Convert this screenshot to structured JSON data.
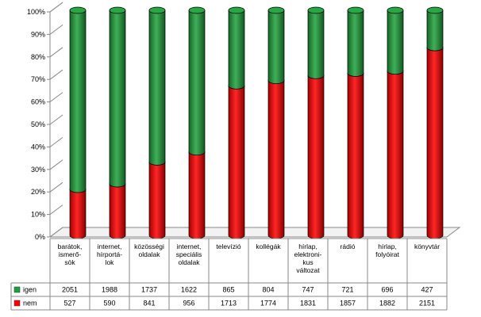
{
  "chart_data": {
    "type": "bar",
    "stacked": "percent",
    "title": "",
    "xlabel": "",
    "ylabel": "",
    "ylim": [
      0,
      100
    ],
    "yticks": [
      "0%",
      "10%",
      "20%",
      "30%",
      "40%",
      "50%",
      "60%",
      "70%",
      "80%",
      "90%",
      "100%"
    ],
    "grid": false,
    "legend": "data-table-left",
    "categories": [
      [
        "barátok,",
        "ismerő-",
        "sök"
      ],
      [
        "internet,",
        "hírportá-",
        "lok"
      ],
      [
        "közösségi",
        "oldalak"
      ],
      [
        "internet,",
        "speciális",
        "oldalak"
      ],
      [
        "televízió"
      ],
      [
        "kollégák"
      ],
      [
        "hírlap,",
        "elektroni-",
        "kus",
        "változat"
      ],
      [
        "rádió"
      ],
      [
        "hírlap,",
        "folyóirat"
      ],
      [
        "könyvtár"
      ]
    ],
    "series": [
      {
        "name": "nem",
        "color": "#ff0000",
        "values": [
          527,
          590,
          841,
          956,
          1713,
          1774,
          1831,
          1857,
          1882,
          2151
        ]
      },
      {
        "name": "igen",
        "color": "#1ea13c",
        "values": [
          2051,
          1988,
          1737,
          1622,
          865,
          804,
          747,
          721,
          696,
          427
        ]
      }
    ]
  }
}
